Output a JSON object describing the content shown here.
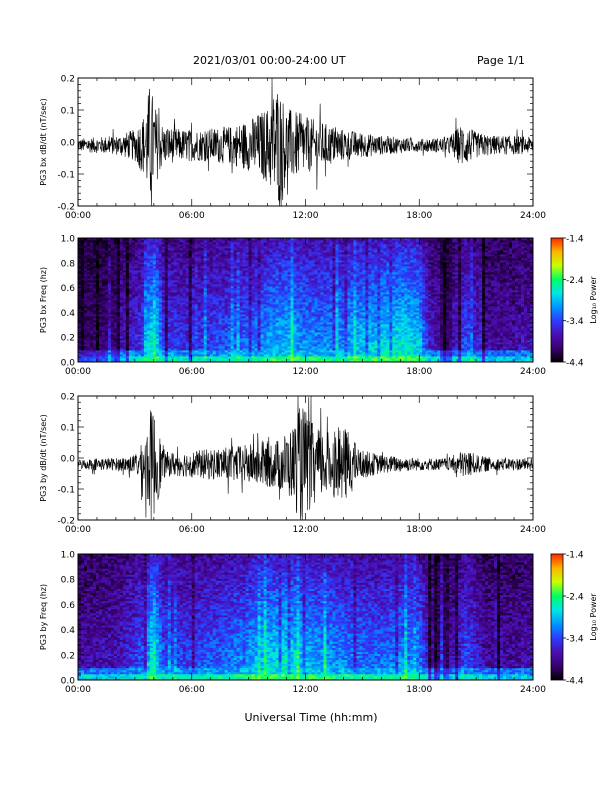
{
  "header": {
    "date_range": "2021/03/01  00:00-24:00 UT",
    "page": "Page 1/1"
  },
  "xlabel": "Universal Time (hh:mm)",
  "colors": {
    "colormap": [
      "#000000",
      "#3a006e",
      "#4b0fb4",
      "#2c3cff",
      "#0096ff",
      "#00e6e6",
      "#00ff64",
      "#c8ff00",
      "#ffb400",
      "#ff2800"
    ]
  },
  "chart_data": [
    {
      "type": "line",
      "ylabel": "PG3 bx dB/dt (nT/sec)",
      "x_ticks": [
        "00:00",
        "06:00",
        "12:00",
        "18:00",
        "24:00"
      ],
      "x_range": [
        0,
        24
      ],
      "ylim": [
        -0.2,
        0.2
      ],
      "y_ticks": [
        "-0.2",
        "-0.1",
        "0.0",
        "0.1",
        "0.2"
      ],
      "y_tick_values": [
        -0.2,
        -0.1,
        0.0,
        0.1,
        0.2
      ],
      "baseline": -0.01,
      "amplitude_envelope": {
        "hours": [
          0,
          1,
          2,
          3,
          3.5,
          3.8,
          4.1,
          4.5,
          5.5,
          6.5,
          8,
          9,
          10,
          10.5,
          11,
          12,
          13,
          14,
          15,
          16,
          18,
          19.5,
          20.3,
          21,
          22,
          23,
          24
        ],
        "amplitude": [
          0.02,
          0.025,
          0.03,
          0.05,
          0.1,
          0.2,
          0.12,
          0.06,
          0.05,
          0.05,
          0.06,
          0.08,
          0.12,
          0.2,
          0.12,
          0.09,
          0.07,
          0.05,
          0.04,
          0.03,
          0.02,
          0.025,
          0.07,
          0.04,
          0.03,
          0.03,
          0.025
        ]
      }
    },
    {
      "type": "heatmap",
      "ylabel": "PG3 bx Freq (hz)",
      "colorbar_label": "Log₁₀ Power",
      "x_ticks": [
        "00:00",
        "06:00",
        "12:00",
        "18:00",
        "24:00"
      ],
      "x_range": [
        0,
        24
      ],
      "ylim": [
        0.0,
        1.0
      ],
      "y_ticks": [
        "0.0",
        "0.2",
        "0.4",
        "0.6",
        "0.8",
        "1.0"
      ],
      "y_tick_values": [
        0.0,
        0.2,
        0.4,
        0.6,
        0.8,
        1.0
      ],
      "colorbar_range": [
        -4.4,
        -1.4
      ],
      "colorbar_ticks": [
        "-1.4",
        "-2.4",
        "-3.4",
        "-4.4"
      ],
      "colorbar_tick_values": [
        -1.4,
        -2.4,
        -3.4,
        -4.4
      ],
      "activity_profile": {
        "hours": [
          0,
          2,
          3.5,
          4,
          4.5,
          6,
          8,
          9,
          10,
          11,
          12,
          13,
          14,
          15,
          16,
          17,
          18,
          18.5,
          19.5,
          20.5,
          21.5,
          23,
          24
        ],
        "level": [
          0.15,
          0.2,
          0.4,
          0.85,
          0.4,
          0.35,
          0.45,
          0.5,
          0.6,
          0.65,
          0.55,
          0.55,
          0.6,
          0.65,
          0.7,
          0.75,
          0.7,
          0.3,
          0.15,
          0.45,
          0.2,
          0.2,
          0.25
        ]
      }
    },
    {
      "type": "line",
      "ylabel": "PG3 by dB/dt (nT/sec)",
      "x_ticks": [
        "00:00",
        "06:00",
        "12:00",
        "18:00",
        "24:00"
      ],
      "x_range": [
        0,
        24
      ],
      "ylim": [
        -0.2,
        0.2
      ],
      "y_ticks": [
        "-0.2",
        "-0.1",
        "0.0",
        "0.1",
        "0.2"
      ],
      "y_tick_values": [
        -0.2,
        -0.1,
        0.0,
        0.1,
        0.2
      ],
      "baseline": -0.02,
      "amplitude_envelope": {
        "hours": [
          0,
          1,
          2,
          3,
          3.5,
          3.9,
          4.2,
          4.6,
          5.5,
          7,
          8.5,
          9.5,
          10.5,
          11.3,
          11.8,
          12.5,
          13.5,
          14.2,
          14.8,
          16,
          18,
          19.5,
          20.5,
          21,
          22,
          23,
          24
        ],
        "amplitude": [
          0.015,
          0.02,
          0.02,
          0.03,
          0.08,
          0.2,
          0.12,
          0.04,
          0.04,
          0.05,
          0.06,
          0.07,
          0.08,
          0.12,
          0.2,
          0.12,
          0.1,
          0.12,
          0.05,
          0.03,
          0.02,
          0.02,
          0.05,
          0.03,
          0.02,
          0.02,
          0.02
        ]
      }
    },
    {
      "type": "heatmap",
      "ylabel": "PG3 by Freq (hz)",
      "colorbar_label": "Log₁₀ Power",
      "x_ticks": [
        "00:00",
        "06:00",
        "12:00",
        "18:00",
        "24:00"
      ],
      "x_range": [
        0,
        24
      ],
      "ylim": [
        0.0,
        1.0
      ],
      "y_ticks": [
        "0.0",
        "0.2",
        "0.4",
        "0.6",
        "0.8",
        "1.0"
      ],
      "y_tick_values": [
        0.0,
        0.2,
        0.4,
        0.6,
        0.8,
        1.0
      ],
      "colorbar_range": [
        -4.4,
        -1.4
      ],
      "colorbar_ticks": [
        "-1.4",
        "-2.4",
        "-3.4",
        "-4.4"
      ],
      "colorbar_tick_values": [
        -1.4,
        -2.4,
        -3.4,
        -4.4
      ],
      "activity_profile": {
        "hours": [
          0,
          2,
          3.5,
          4,
          4.5,
          6,
          8,
          9,
          10,
          11,
          12,
          13,
          14,
          15,
          16,
          17,
          18,
          18.5,
          19.5,
          20.5,
          21.5,
          23,
          24
        ],
        "level": [
          0.2,
          0.25,
          0.45,
          0.85,
          0.45,
          0.4,
          0.5,
          0.6,
          0.7,
          0.75,
          0.65,
          0.6,
          0.55,
          0.5,
          0.5,
          0.55,
          0.55,
          0.25,
          0.15,
          0.45,
          0.2,
          0.2,
          0.25
        ]
      }
    }
  ]
}
